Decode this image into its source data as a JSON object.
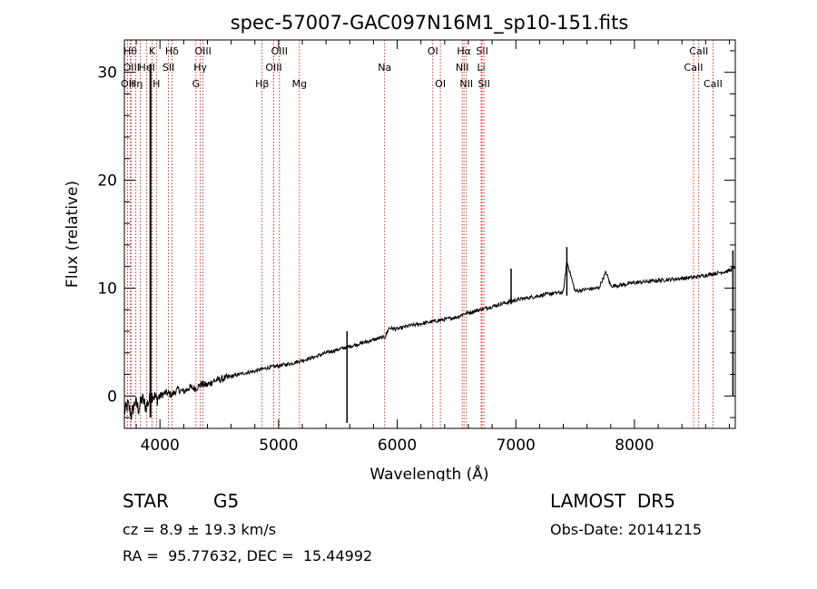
{
  "chart_data": {
    "type": "line",
    "title": "spec-57007-GAC097N16M1_sp10-151.fits",
    "xlabel": "Wavelength (Å)",
    "ylabel": "Flux (relative)",
    "xlim": [
      3700,
      8850
    ],
    "ylim": [
      -3,
      33
    ],
    "xticks": [
      4000,
      5000,
      6000,
      7000,
      8000
    ],
    "yticks": [
      0,
      10,
      20,
      30
    ],
    "grid": false,
    "series": [
      {
        "x": [
          3700,
          3730,
          3760,
          3790,
          3820,
          3850,
          3880,
          3910,
          3940,
          3970,
          4000,
          4050,
          4100,
          4150,
          4200,
          4250,
          4300,
          4350,
          4400,
          4450,
          4500,
          4600,
          4700,
          4800,
          4900,
          5000,
          5100,
          5200,
          5300,
          5400,
          5500,
          5600,
          5700,
          5800,
          5900,
          5930,
          6000,
          6100,
          6200,
          6300,
          6400,
          6500,
          6560,
          6600,
          6700,
          6800,
          6900,
          7000,
          7100,
          7200,
          7300,
          7400,
          7430,
          7500,
          7600,
          7700,
          7760,
          7800,
          7900,
          8000,
          8100,
          8200,
          8300,
          8400,
          8500,
          8600,
          8700,
          8800,
          8850
        ],
        "y": [
          -1.5,
          -0.8,
          -1.8,
          -0.5,
          -1.2,
          -0.2,
          -1.0,
          -0.4,
          0.2,
          -0.3,
          0.0,
          0.3,
          0.1,
          0.6,
          0.4,
          0.8,
          0.7,
          1.1,
          1.0,
          1.4,
          1.5,
          1.8,
          2.1,
          2.3,
          2.6,
          2.8,
          3.0,
          3.3,
          3.6,
          4.0,
          4.3,
          4.6,
          4.9,
          5.2,
          5.5,
          6.3,
          6.2,
          6.5,
          6.7,
          6.9,
          7.1,
          7.3,
          7.6,
          7.7,
          8.0,
          8.3,
          8.6,
          8.9,
          9.1,
          9.3,
          9.5,
          9.6,
          12.5,
          9.7,
          9.9,
          10.0,
          11.5,
          10.2,
          10.3,
          10.5,
          10.6,
          10.7,
          10.8,
          10.9,
          11.0,
          11.2,
          11.4,
          11.6,
          12.0
        ]
      }
    ],
    "spikes": [
      {
        "x": 3920,
        "y_top": 30.8,
        "y_bottom": -2.0
      },
      {
        "x": 5577,
        "y_top": 6.0,
        "y_bottom": -2.5
      },
      {
        "x": 6960,
        "y_top": 11.8,
        "y_bottom": 8.5
      },
      {
        "x": 7430,
        "y_top": 13.8,
        "y_bottom": 9.3
      },
      {
        "x": 8830,
        "y_top": 13.5,
        "y_bottom": 0.0
      }
    ],
    "lines": [
      {
        "x": 3727,
        "label": "OII",
        "row": 2
      },
      {
        "x": 3750,
        "label": "Hθ",
        "row": 0
      },
      {
        "x": 3760,
        "label": "OIII",
        "row": 1
      },
      {
        "x": 3797,
        "label": "Hη",
        "row": 2
      },
      {
        "x": 3835,
        "label": "",
        "row": 2
      },
      {
        "x": 3889,
        "label": "HeI",
        "row": 1
      },
      {
        "x": 3934,
        "label": "K",
        "row": 0
      },
      {
        "x": 3970,
        "label": "H",
        "row": 2
      },
      {
        "x": 4101,
        "label": "Hδ",
        "row": 0
      },
      {
        "x": 4072,
        "label": "SII",
        "row": 1
      },
      {
        "x": 4304,
        "label": "G",
        "row": 2
      },
      {
        "x": 4340,
        "label": "Hγ",
        "row": 1
      },
      {
        "x": 4363,
        "label": "OIII",
        "row": 0
      },
      {
        "x": 4861,
        "label": "Hβ",
        "row": 2
      },
      {
        "x": 4959,
        "label": "OIII",
        "row": 1
      },
      {
        "x": 5007,
        "label": "OIII",
        "row": 0
      },
      {
        "x": 5176,
        "label": "Mg",
        "row": 2
      },
      {
        "x": 5894,
        "label": "Na",
        "row": 1
      },
      {
        "x": 6300,
        "label": "OI",
        "row": 0
      },
      {
        "x": 6364,
        "label": "OI",
        "row": 2
      },
      {
        "x": 6548,
        "label": "NII",
        "row": 1
      },
      {
        "x": 6563,
        "label": "Hα",
        "row": 0
      },
      {
        "x": 6583,
        "label": "NII",
        "row": 2
      },
      {
        "x": 6708,
        "label": "Li",
        "row": 1
      },
      {
        "x": 6716,
        "label": "SII",
        "row": 0
      },
      {
        "x": 6731,
        "label": "SII",
        "row": 2
      },
      {
        "x": 8498,
        "label": "CaII",
        "row": 1
      },
      {
        "x": 8542,
        "label": "CaII",
        "row": 0
      },
      {
        "x": 8662,
        "label": "CaII",
        "row": 2
      }
    ]
  },
  "info": {
    "class": "STAR",
    "subclass": "G5",
    "survey": "LAMOST  DR5",
    "cz": "cz = 8.9 ± 19.3 km/s",
    "obs_date": "Obs-Date: 20141215",
    "coords": "RA =  95.77632, DEC =  15.44992"
  },
  "colors": {
    "spectrum": "#000000",
    "line_marker": "#cc0000",
    "axes": "#000000"
  }
}
